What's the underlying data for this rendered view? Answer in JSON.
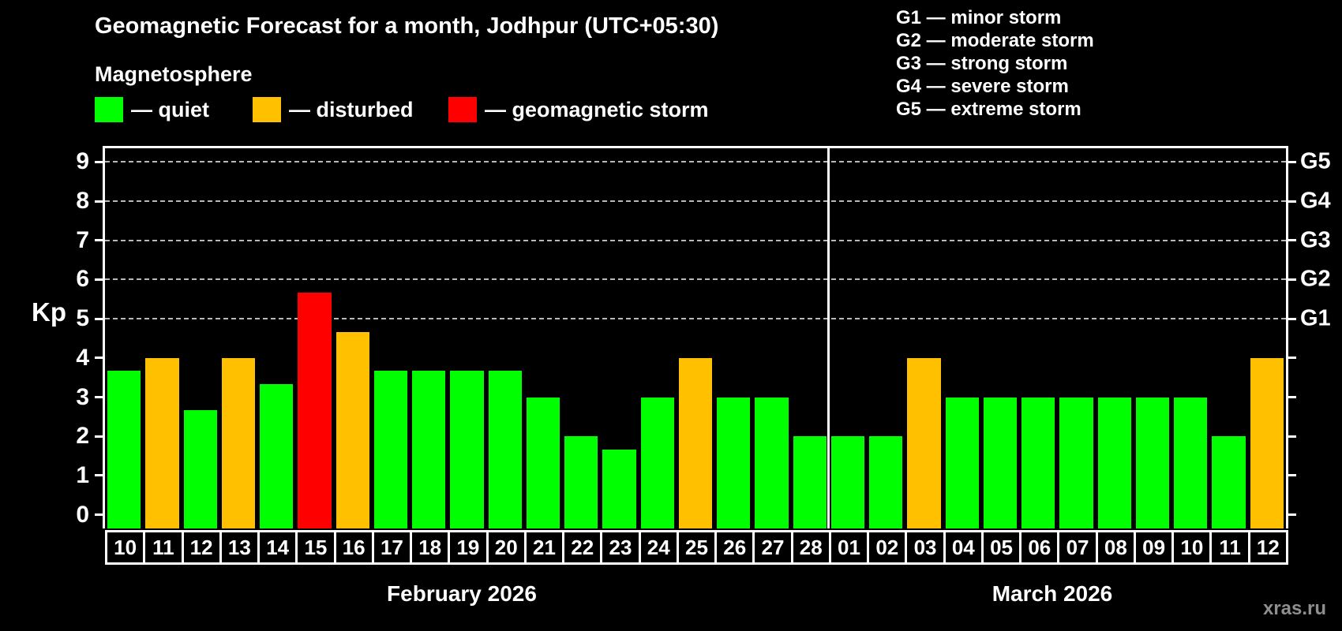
{
  "title": "Geomagnetic Forecast for a month, Jodhpur (UTC+05:30)",
  "subtitle": "Magnetosphere",
  "legend": {
    "items": [
      {
        "status": "quiet",
        "label": "— quiet",
        "color": "#00FF00"
      },
      {
        "status": "disturbed",
        "label": "— disturbed",
        "color": "#FFC000"
      },
      {
        "status": "storm",
        "label": "— geomagnetic storm",
        "color": "#FF0000"
      }
    ]
  },
  "g_scale_legend": {
    "items": [
      {
        "label": "G1 — minor storm"
      },
      {
        "label": "G2 — moderate storm"
      },
      {
        "label": "G3 — strong storm"
      },
      {
        "label": "G4 — severe storm"
      },
      {
        "label": "G5 — extreme storm"
      }
    ]
  },
  "watermark": "xras.ru",
  "chart_data": {
    "type": "bar",
    "title": "Geomagnetic Forecast for a month, Jodhpur (UTC+05:30)",
    "ylabel": "Kp",
    "ylim": [
      0,
      9
    ],
    "y_ticks": [
      0,
      1,
      2,
      3,
      4,
      5,
      6,
      7,
      8,
      9
    ],
    "right_axis_labels": [
      "G1",
      "G2",
      "G3",
      "G4",
      "G5"
    ],
    "gridlines_at_kp": [
      5,
      6,
      7,
      8,
      9
    ],
    "grid_style": "dashed horizontal lines at G-storm levels only",
    "legend_position": "top-left",
    "months": [
      {
        "label": "February 2026",
        "days": [
          {
            "day": "10",
            "kp": 3.67,
            "status": "quiet"
          },
          {
            "day": "11",
            "kp": 4.0,
            "status": "disturbed"
          },
          {
            "day": "12",
            "kp": 2.67,
            "status": "quiet"
          },
          {
            "day": "13",
            "kp": 4.0,
            "status": "disturbed"
          },
          {
            "day": "14",
            "kp": 3.33,
            "status": "quiet"
          },
          {
            "day": "15",
            "kp": 5.67,
            "status": "storm"
          },
          {
            "day": "16",
            "kp": 4.67,
            "status": "disturbed"
          },
          {
            "day": "17",
            "kp": 3.67,
            "status": "quiet"
          },
          {
            "day": "18",
            "kp": 3.67,
            "status": "quiet"
          },
          {
            "day": "19",
            "kp": 3.67,
            "status": "quiet"
          },
          {
            "day": "20",
            "kp": 3.67,
            "status": "quiet"
          },
          {
            "day": "21",
            "kp": 3.0,
            "status": "quiet"
          },
          {
            "day": "22",
            "kp": 2.0,
            "status": "quiet"
          },
          {
            "day": "23",
            "kp": 1.67,
            "status": "quiet"
          },
          {
            "day": "24",
            "kp": 3.0,
            "status": "quiet"
          },
          {
            "day": "25",
            "kp": 4.0,
            "status": "disturbed"
          },
          {
            "day": "26",
            "kp": 3.0,
            "status": "quiet"
          },
          {
            "day": "27",
            "kp": 3.0,
            "status": "quiet"
          },
          {
            "day": "28",
            "kp": 2.0,
            "status": "quiet"
          }
        ]
      },
      {
        "label": "March 2026",
        "days": [
          {
            "day": "01",
            "kp": 2.0,
            "status": "quiet"
          },
          {
            "day": "02",
            "kp": 2.0,
            "status": "quiet"
          },
          {
            "day": "03",
            "kp": 4.0,
            "status": "disturbed"
          },
          {
            "day": "04",
            "kp": 3.0,
            "status": "quiet"
          },
          {
            "day": "05",
            "kp": 3.0,
            "status": "quiet"
          },
          {
            "day": "06",
            "kp": 3.0,
            "status": "quiet"
          },
          {
            "day": "07",
            "kp": 3.0,
            "status": "quiet"
          },
          {
            "day": "08",
            "kp": 3.0,
            "status": "quiet"
          },
          {
            "day": "09",
            "kp": 3.0,
            "status": "quiet"
          },
          {
            "day": "10",
            "kp": 3.0,
            "status": "quiet"
          },
          {
            "day": "11",
            "kp": 2.0,
            "status": "quiet"
          },
          {
            "day": "12",
            "kp": 4.0,
            "status": "disturbed"
          }
        ]
      }
    ]
  }
}
